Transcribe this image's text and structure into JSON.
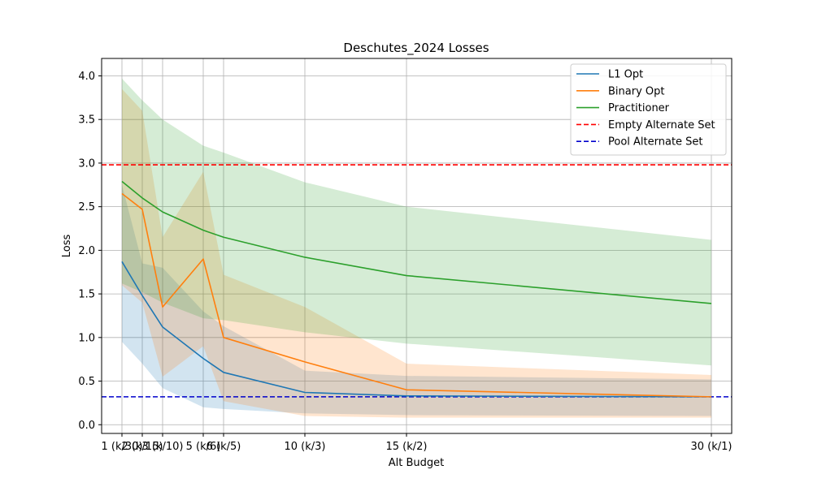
{
  "chart_data": {
    "type": "line",
    "title": "Deschutes_2024 Losses",
    "xlabel": "Alt Budget",
    "ylabel": "Loss",
    "xlim": [
      0,
      31
    ],
    "ylim": [
      -0.1,
      4.2
    ],
    "x": [
      1,
      2,
      3,
      5,
      6,
      10,
      15,
      30
    ],
    "x_tick_labels": [
      "1 (k/30)",
      "2 (k/15)",
      "3 (k/10)",
      "5 (k/6)",
      "6 (k/5)",
      "10 (k/3)",
      "15 (k/2)",
      "30 (k/1)"
    ],
    "y_ticks": [
      0.0,
      0.5,
      1.0,
      1.5,
      2.0,
      2.5,
      3.0,
      3.5,
      4.0
    ],
    "y_tick_labels": [
      "0.0",
      "0.5",
      "1.0",
      "1.5",
      "2.0",
      "2.5",
      "3.0",
      "3.5",
      "4.0"
    ],
    "grid": true,
    "legend_position": "top-right",
    "series": [
      {
        "name": "L1 Opt",
        "color": "#1f77b4",
        "values": [
          1.87,
          1.48,
          1.12,
          0.76,
          0.6,
          0.37,
          0.33,
          0.32
        ],
        "band_low": [
          0.95,
          0.7,
          0.42,
          0.2,
          0.18,
          0.13,
          0.11,
          0.1
        ],
        "band_high": [
          2.75,
          1.85,
          1.8,
          1.3,
          1.13,
          0.62,
          0.56,
          0.52
        ]
      },
      {
        "name": "Binary Opt",
        "color": "#ff7f0e",
        "values": [
          2.65,
          2.47,
          1.35,
          1.9,
          1.0,
          0.72,
          0.4,
          0.32
        ],
        "band_low": [
          1.6,
          1.4,
          0.55,
          0.9,
          0.27,
          0.1,
          0.08,
          0.08
        ],
        "band_high": [
          3.85,
          3.6,
          2.15,
          2.9,
          1.72,
          1.35,
          0.7,
          0.57
        ]
      },
      {
        "name": "Practitioner",
        "color": "#2ca02c",
        "values": [
          2.79,
          2.6,
          2.44,
          2.23,
          2.15,
          1.92,
          1.71,
          1.39
        ],
        "band_low": [
          1.62,
          1.52,
          1.4,
          1.22,
          1.2,
          1.06,
          0.93,
          0.68
        ],
        "band_high": [
          3.97,
          3.72,
          3.5,
          3.2,
          3.12,
          2.78,
          2.5,
          2.12
        ]
      }
    ],
    "reference_lines": [
      {
        "name": "Empty Alternate Set",
        "color": "#ff0000",
        "value": 2.98,
        "style": "dashed"
      },
      {
        "name": "Pool Alternate Set",
        "color": "#0000cc",
        "value": 0.32,
        "style": "dashed"
      }
    ]
  }
}
